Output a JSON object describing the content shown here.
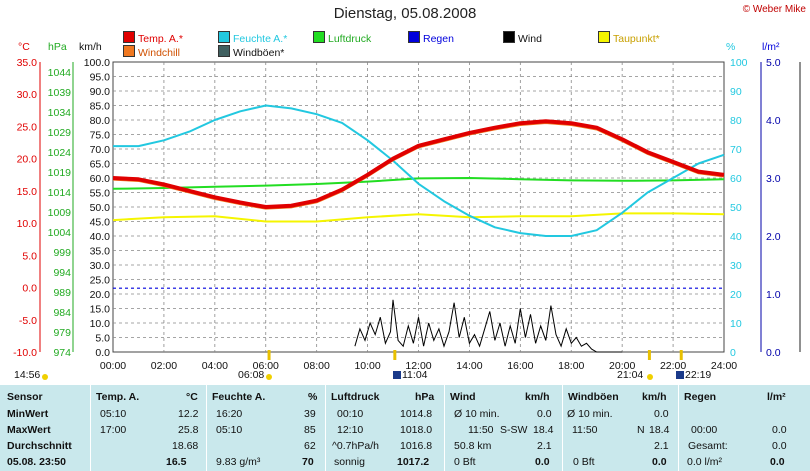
{
  "title": "Dienstag, 05.08.2008",
  "credit": "© Weber Mike",
  "units": {
    "temp": "°C",
    "press": "hPa",
    "wind": "km/h",
    "hum": "%",
    "rain": "l/m²"
  },
  "legend": [
    {
      "label": "Temp. A.*",
      "color": "#e00000"
    },
    {
      "label": "Feuchte A.*",
      "color": "#22c8e0"
    },
    {
      "label": "Luftdruck",
      "color": "#22dd22"
    },
    {
      "label": "Regen",
      "color": "#0000dd"
    },
    {
      "label": "Wind",
      "color": "#000000"
    },
    {
      "label": "Taupunkt*",
      "color": "#f5f500"
    },
    {
      "label": "Windchill",
      "color": "#f07820"
    },
    {
      "label": "Windböen*",
      "color": "#406060"
    }
  ],
  "chart_data": {
    "type": "line",
    "x_ticks": [
      "00:00",
      "02:00",
      "04:00",
      "06:00",
      "08:00",
      "10:00",
      "12:00",
      "14:00",
      "16:00",
      "18:00",
      "20:00",
      "22:00",
      "24:00"
    ],
    "temp_ticks": [
      "35.0",
      "30.0",
      "25.0",
      "20.0",
      "15.0",
      "10.0",
      "5.0",
      "0.0",
      "-5.0",
      "-10.0"
    ],
    "press_ticks": [
      "1044",
      "1039",
      "1034",
      "1029",
      "1024",
      "1019",
      "1014",
      "1009",
      "1004",
      "999",
      "994",
      "989",
      "984",
      "979",
      "974"
    ],
    "wind_ticks": [
      "100.0",
      "95.0",
      "90.0",
      "85.0",
      "80.0",
      "75.0",
      "70.0",
      "65.0",
      "60.0",
      "55.0",
      "50.0",
      "45.0",
      "40.0",
      "35.0",
      "30.0",
      "25.0",
      "20.0",
      "15.0",
      "10.0",
      "5.0",
      "0.0"
    ],
    "hum_ticks": [
      "100",
      "90",
      "80",
      "70",
      "60",
      "50",
      "40",
      "30",
      "20",
      "10",
      "0"
    ],
    "rain_ticks": [
      "5.0",
      "4.0",
      "3.0",
      "2.0",
      "1.0",
      "0.0"
    ],
    "series": [
      {
        "name": "Temp. A.*",
        "color": "#e00000",
        "hours": [
          0,
          1,
          2,
          3,
          4,
          5,
          6,
          7,
          8,
          9,
          10,
          11,
          12,
          13,
          14,
          15,
          16,
          17,
          18,
          19,
          20,
          21,
          22,
          23,
          24
        ],
        "values": [
          17.0,
          16.8,
          16.0,
          15.0,
          14.0,
          13.2,
          12.5,
          12.7,
          13.5,
          15.2,
          17.5,
          20.0,
          22.0,
          23.0,
          24.0,
          24.8,
          25.5,
          25.8,
          25.5,
          24.8,
          23.0,
          21.0,
          19.5,
          18.0,
          17.5
        ]
      },
      {
        "name": "Feuchte A.*",
        "color": "#22c8e0",
        "hours": [
          0,
          1,
          2,
          3,
          4,
          5,
          6,
          7,
          8,
          9,
          10,
          11,
          12,
          13,
          14,
          15,
          16,
          17,
          18,
          19,
          20,
          21,
          22,
          23,
          24
        ],
        "values": [
          71,
          71,
          73,
          76,
          80,
          83,
          85,
          84,
          82,
          79,
          73,
          66,
          58,
          52,
          47,
          43,
          41,
          40,
          40,
          42,
          48,
          55,
          60,
          65,
          68
        ]
      },
      {
        "name": "Luftdruck",
        "color": "#22dd22",
        "hours": [
          0,
          2,
          4,
          6,
          8,
          10,
          12,
          14,
          16,
          18,
          20,
          22,
          24
        ],
        "values": [
          1014.8,
          1015.0,
          1015.3,
          1015.6,
          1016.0,
          1016.6,
          1017.4,
          1017.5,
          1017.2,
          1016.9,
          1016.8,
          1016.9,
          1017.2
        ]
      },
      {
        "name": "Taupunkt*",
        "color": "#f5f500",
        "hours": [
          0,
          2,
          4,
          6,
          8,
          10,
          12,
          14,
          16,
          18,
          20,
          22,
          24
        ],
        "values": [
          45.5,
          46.5,
          46.8,
          45.0,
          45.0,
          46.5,
          47.5,
          46.5,
          46.8,
          46.8,
          47.8,
          47.8,
          47.5
        ]
      },
      {
        "name": "Regen",
        "color": "#0000dd",
        "hours": [
          0,
          24
        ],
        "values": [
          22,
          22
        ]
      }
    ],
    "wind_hours": [
      9.5,
      9.7,
      9.9,
      10.1,
      10.3,
      10.5,
      10.7,
      10.9,
      11.0,
      11.2,
      11.4,
      11.6,
      11.8,
      12.0,
      12.2,
      12.4,
      12.6,
      12.8,
      13.0,
      13.2,
      13.4,
      13.6,
      13.8,
      14.0,
      14.2,
      14.4,
      14.6,
      14.8,
      15.0,
      15.2,
      15.4,
      15.6,
      15.8,
      16.0,
      16.2,
      16.4,
      16.6,
      16.8,
      17.0,
      17.2,
      17.4,
      17.6,
      17.8,
      18.0,
      18.2,
      18.4,
      18.6,
      18.8,
      19.0,
      19.5,
      20.0
    ],
    "wind_values": [
      2,
      8,
      4,
      10,
      6,
      12,
      3,
      7,
      18,
      4,
      2,
      9,
      3,
      12,
      2,
      10,
      4,
      8,
      2,
      7,
      17,
      5,
      12,
      3,
      6,
      2,
      8,
      14,
      4,
      10,
      2,
      9,
      3,
      15,
      5,
      13,
      3,
      9,
      4,
      16,
      6,
      2,
      8,
      3,
      5,
      2,
      3,
      1,
      0,
      0,
      0
    ],
    "sun_markers": [
      {
        "label": "14:56"
      },
      {
        "label": "06:08"
      },
      {
        "label": "11:04"
      },
      {
        "label": "21:04"
      },
      {
        "label": "22:19"
      }
    ]
  },
  "table": {
    "cols": [
      {
        "header": "Sensor",
        "unit": ""
      },
      {
        "header": "Temp. A.",
        "unit": "°C"
      },
      {
        "header": "Feuchte A.",
        "unit": "%"
      },
      {
        "header": "Luftdruck",
        "unit": "hPa"
      },
      {
        "header": "Wind",
        "unit": "km/h"
      },
      {
        "header": "Windböen",
        "unit": "km/h"
      },
      {
        "header": "Regen",
        "unit": "l/m²"
      }
    ],
    "rows": [
      {
        "label": "MinWert",
        "temp_time": "05:10",
        "temp_val": "12.2",
        "hum_time": "16:20",
        "hum_val": "39",
        "press_time": "00:10",
        "press_val": "1014.8",
        "wind_a": "Ø 10 min.",
        "wind_b": "",
        "wind_val": "0.0",
        "gust_a": "Ø 10 min.",
        "gust_val": "0.0",
        "rain_a": "",
        "rain_val": ""
      },
      {
        "label": "MaxWert",
        "temp_time": "17:00",
        "temp_val": "25.8",
        "hum_time": "05:10",
        "hum_val": "85",
        "press_time": "12:10",
        "press_val": "1018.0",
        "wind_a": "11:50",
        "wind_b": "S-SW",
        "wind_val": "18.4",
        "gust_a": "11:50",
        "gust_b": "N",
        "gust_val": "18.4",
        "rain_a": "00:00",
        "rain_val": "0.0"
      },
      {
        "label": "Durchschnitt",
        "temp_time": "",
        "temp_val": "18.68",
        "hum_time": "",
        "hum_val": "62",
        "press_time": "^0.7hPa/h",
        "press_val": "1016.8",
        "wind_a": "50.8 km",
        "wind_b": "",
        "wind_val": "2.1",
        "gust_a": "",
        "gust_val": "2.1",
        "rain_a": "Gesamt:",
        "rain_val": "0.0"
      },
      {
        "label": "05.08. 23:50",
        "temp_time": "",
        "temp_val": "16.5",
        "hum_time": "9.83 g/m³",
        "hum_val": "70",
        "press_time": "sonnig",
        "press_val": "1017.2",
        "wind_a": "0 Bft",
        "wind_b": "",
        "wind_val": "0.0",
        "gust_a": "0 Bft",
        "gust_val": "0.0",
        "rain_a": "0.0 l/m²",
        "rain_val": "0.0"
      }
    ]
  }
}
